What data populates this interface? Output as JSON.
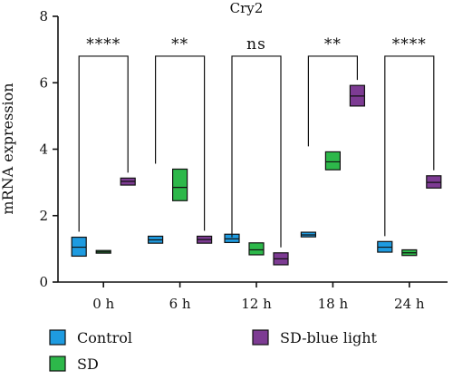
{
  "chart_data": {
    "type": "box",
    "title": "Cry2",
    "xlabel": "",
    "ylabel": "mRNA expression",
    "ylim": [
      0,
      8
    ],
    "yticks": [
      "0",
      "2",
      "4",
      "6",
      "8"
    ],
    "categories": [
      "0 h",
      "6 h",
      "12 h",
      "18 h",
      "24 h"
    ],
    "legend_position": "bottom",
    "series": [
      {
        "name": "Control",
        "color": "#1e9be0",
        "boxes": [
          {
            "q1": 0.78,
            "median": 1.05,
            "q3": 1.35
          },
          {
            "q1": 1.17,
            "median": 1.27,
            "q3": 1.38
          },
          {
            "q1": 1.19,
            "median": 1.3,
            "q3": 1.44
          },
          {
            "q1": 1.36,
            "median": 1.42,
            "q3": 1.5
          },
          {
            "q1": 0.9,
            "median": 1.05,
            "q3": 1.22
          }
        ]
      },
      {
        "name": "SD",
        "color": "#2db84a",
        "boxes": [
          {
            "q1": 0.87,
            "median": 0.91,
            "q3": 0.95
          },
          {
            "q1": 2.45,
            "median": 2.85,
            "q3": 3.4
          },
          {
            "q1": 0.82,
            "median": 0.97,
            "q3": 1.18
          },
          {
            "q1": 3.38,
            "median": 3.62,
            "q3": 3.92
          },
          {
            "q1": 0.8,
            "median": 0.88,
            "q3": 0.97
          }
        ]
      },
      {
        "name": "SD-blue light",
        "color": "#7d3b93",
        "boxes": [
          {
            "q1": 2.92,
            "median": 3.03,
            "q3": 3.13
          },
          {
            "q1": 1.17,
            "median": 1.28,
            "q3": 1.38
          },
          {
            "q1": 0.52,
            "median": 0.7,
            "q3": 0.88
          },
          {
            "q1": 5.3,
            "median": 5.6,
            "q3": 5.92
          },
          {
            "q1": 2.83,
            "median": 3.0,
            "q3": 3.2
          }
        ]
      }
    ],
    "significance": [
      {
        "category": "0 h",
        "label": "****",
        "left_top": 1.35,
        "right_top": 3.13,
        "bracket_y": 6.8
      },
      {
        "category": "6 h",
        "label": "**",
        "left_top": 3.4,
        "right_top": 1.38,
        "bracket_y": 6.8
      },
      {
        "category": "12 h",
        "label": "ns",
        "left_top": 1.18,
        "right_top": 0.88,
        "bracket_y": 6.8
      },
      {
        "category": "18 h",
        "label": "**",
        "left_top": 3.92,
        "right_top": 5.92,
        "bracket_y": 6.8
      },
      {
        "category": "24 h",
        "label": "****",
        "left_top": 1.22,
        "right_top": 3.2,
        "bracket_y": 6.8
      }
    ]
  }
}
